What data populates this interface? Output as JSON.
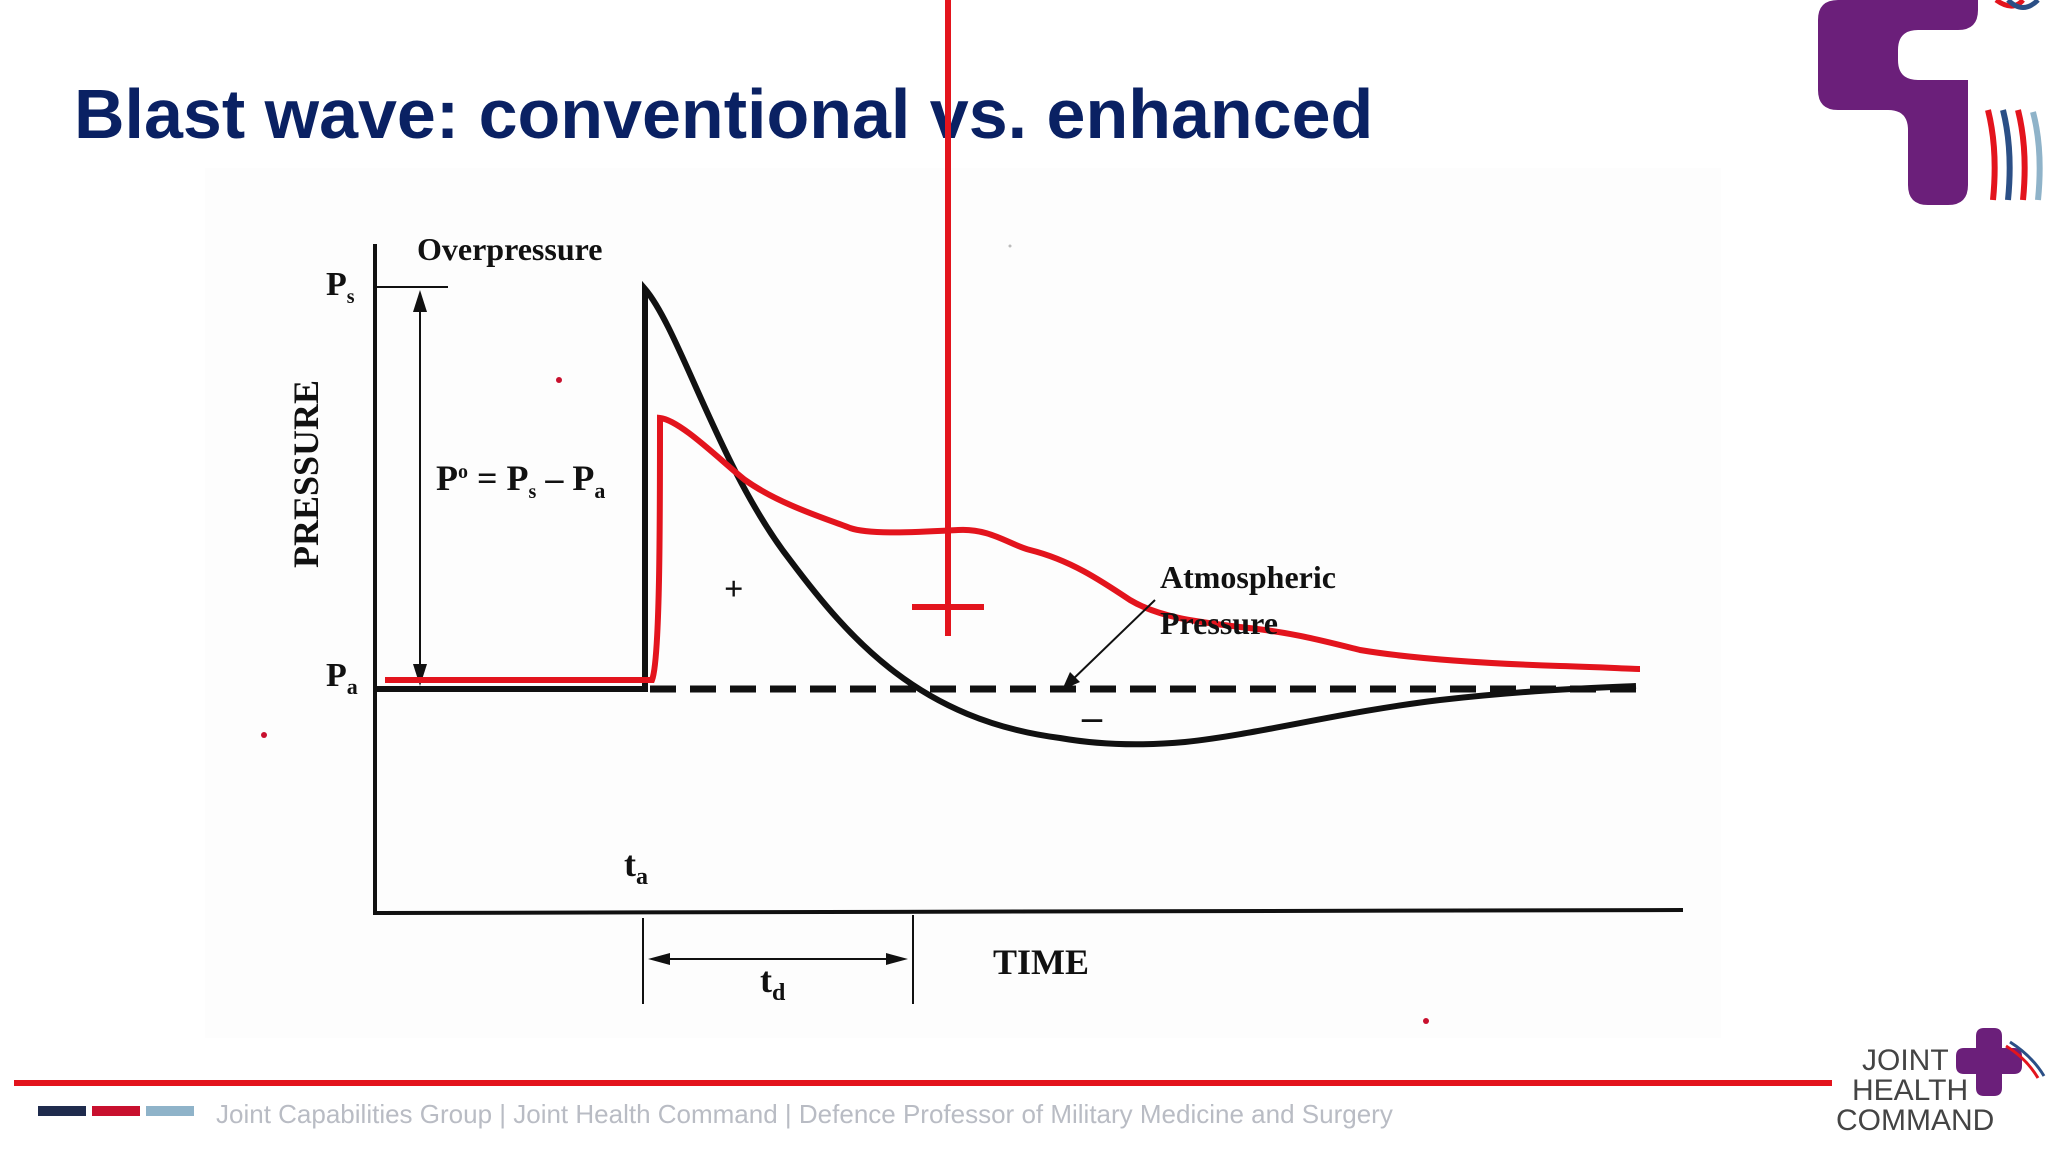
{
  "slide": {
    "title": "Blast wave: conventional vs. enhanced"
  },
  "diagram": {
    "label_overpressure": "Overpressure",
    "label_pressure_axis": "PRESSURE",
    "label_ps": "P",
    "label_ps_sub": "s",
    "label_pa": "P",
    "label_pa_sub": "a",
    "formula": {
      "p": "P",
      "sup": "o",
      "eq": " = P",
      "s": "s",
      "minus": " – P",
      "a": "a"
    },
    "label_ta": "t",
    "label_ta_sub": "a",
    "label_td": "t",
    "label_td_sub": "d",
    "label_time": "TIME",
    "label_atmospheric_1": "Atmospheric",
    "label_atmospheric_2": "Pressure",
    "sign_plus_small": "+",
    "sign_minus": "–",
    "colors": {
      "conventional_curve": "#111111",
      "enhanced_curve": "#e3141d",
      "annotation_plus": "#e3141d"
    }
  },
  "footer": {
    "text": "Joint Capabilities Group | Joint Health Command | Defence Professor of Military Medicine and Surgery",
    "bar_colors": [
      "#1f2b4d",
      "#c8102e",
      "#8fb3c9"
    ]
  },
  "logo": {
    "line1": "JOINT",
    "line2": "HEALTH",
    "line3": "COMMAND",
    "color_primary": "#6b1f7a"
  }
}
